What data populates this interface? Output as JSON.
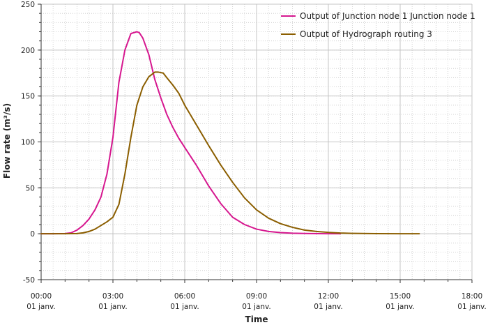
{
  "chart_data": {
    "type": "line",
    "xlabel": "Time",
    "ylabel": "Flow rate (m³/s)",
    "ylim": [
      -50,
      250
    ],
    "y_major_ticks": [
      -50,
      0,
      50,
      100,
      150,
      200,
      250
    ],
    "y_minor_step": 10,
    "xlim_hours": [
      0,
      18
    ],
    "x_major_ticks": [
      {
        "hour": 0,
        "time": "00:00",
        "date": "01 janv."
      },
      {
        "hour": 3,
        "time": "03:00",
        "date": "01 janv."
      },
      {
        "hour": 6,
        "time": "06:00",
        "date": "01 janv."
      },
      {
        "hour": 9,
        "time": "09:00",
        "date": "01 janv."
      },
      {
        "hour": 12,
        "time": "12:00",
        "date": "01 janv."
      },
      {
        "hour": 15,
        "time": "15:00",
        "date": "01 janv."
      },
      {
        "hour": 18,
        "time": "18:00",
        "date": "01 janv."
      }
    ],
    "x_minor_step_hours": 0.5,
    "grid": true,
    "legend_position": "top-right",
    "series": [
      {
        "name": "Output of Junction node 1 Junction node 1",
        "color": "#d6178f",
        "x": [
          0,
          0.5,
          1.0,
          1.25,
          1.5,
          1.75,
          2.0,
          2.25,
          2.5,
          2.75,
          3.0,
          3.25,
          3.5,
          3.75,
          4.0,
          4.1,
          4.25,
          4.5,
          4.75,
          5.0,
          5.25,
          5.5,
          5.75,
          6.0,
          6.5,
          7.0,
          7.5,
          8.0,
          8.5,
          9.0,
          9.5,
          10.0,
          10.5,
          11.0,
          11.5,
          12.0,
          12.5
        ],
        "y": [
          0,
          0,
          0.2,
          1,
          4,
          9,
          16,
          26,
          40,
          65,
          105,
          165,
          200,
          218,
          220,
          219,
          213,
          195,
          168,
          148,
          130,
          116,
          104,
          94,
          74,
          52,
          33,
          18,
          10,
          5,
          2.5,
          1.3,
          0.6,
          0.3,
          0.1,
          0.05,
          0
        ]
      },
      {
        "name": "Output of Hydrograph routing 3",
        "color": "#8b5e00",
        "x": [
          0,
          1.0,
          1.5,
          1.75,
          2.0,
          2.25,
          2.5,
          2.75,
          3.0,
          3.25,
          3.5,
          3.75,
          4.0,
          4.25,
          4.5,
          4.75,
          4.9,
          5.1,
          5.25,
          5.5,
          5.75,
          6.0,
          6.5,
          7.0,
          7.5,
          8.0,
          8.5,
          9.0,
          9.5,
          10.0,
          10.5,
          11.0,
          11.5,
          12.0,
          12.5,
          13.0,
          14.0,
          15.0,
          15.8
        ],
        "y": [
          0,
          0,
          0.2,
          1,
          2.5,
          5,
          9,
          13,
          18,
          32,
          65,
          105,
          140,
          160,
          171,
          176,
          176,
          175,
          170,
          162,
          153,
          140,
          118,
          96,
          75,
          56,
          39,
          26,
          17,
          11,
          7,
          4,
          2.5,
          1.5,
          0.8,
          0.4,
          0.1,
          0.02,
          0
        ]
      }
    ]
  }
}
